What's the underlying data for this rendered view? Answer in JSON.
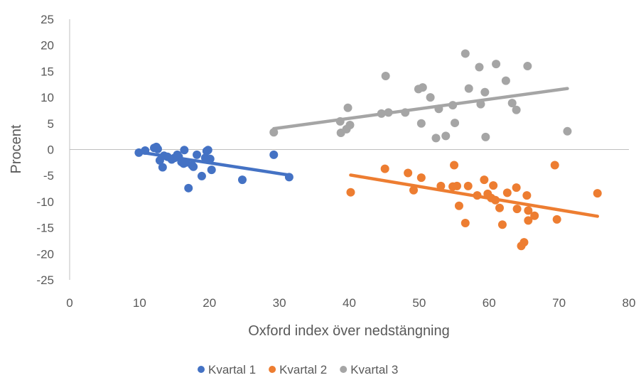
{
  "chart_data": {
    "type": "scatter",
    "xlabel": "Oxford index över nedstängning",
    "ylabel": "Procent",
    "xlim": [
      0,
      80
    ],
    "ylim": [
      -25,
      25
    ],
    "x_ticks": [
      "0",
      "10",
      "20",
      "30",
      "40",
      "50",
      "60",
      "70",
      "80"
    ],
    "y_ticks": [
      "25",
      "20",
      "15",
      "10",
      "5",
      "0",
      "-5",
      "-10",
      "-15",
      "-20",
      "-25"
    ],
    "legend_position": "bottom",
    "grid": false,
    "series": [
      {
        "name": "Kvartal 1",
        "color": "#4472C4",
        "points": [
          [
            9.9,
            -0.6
          ],
          [
            10.8,
            -0.2
          ],
          [
            12.1,
            0.3
          ],
          [
            12.4,
            0.5
          ],
          [
            12.6,
            0.1
          ],
          [
            12.9,
            -2.1
          ],
          [
            13.3,
            -3.4
          ],
          [
            13.5,
            -1.2
          ],
          [
            14.0,
            -1.4
          ],
          [
            14.6,
            -1.9
          ],
          [
            15.0,
            -1.6
          ],
          [
            15.4,
            -1.0
          ],
          [
            15.6,
            -1.4
          ],
          [
            16.0,
            -2.4
          ],
          [
            16.3,
            -2.7
          ],
          [
            16.4,
            -0.1
          ],
          [
            16.6,
            -2.5
          ],
          [
            17.0,
            -7.4
          ],
          [
            17.5,
            -3.0
          ],
          [
            17.7,
            -3.3
          ],
          [
            18.2,
            -1.0
          ],
          [
            18.9,
            -5.1
          ],
          [
            19.4,
            -1.6
          ],
          [
            19.6,
            -0.3
          ],
          [
            19.8,
            -0.1
          ],
          [
            20.1,
            -1.8
          ],
          [
            20.3,
            -3.9
          ],
          [
            24.7,
            -5.8
          ],
          [
            29.2,
            -1.0
          ],
          [
            31.4,
            -5.3
          ]
        ],
        "trend": [
          [
            10,
            -0.5
          ],
          [
            31.4,
            -4.9
          ]
        ]
      },
      {
        "name": "Kvartal 2",
        "color": "#ED7D31",
        "points": [
          [
            40.2,
            -8.2
          ],
          [
            45.1,
            -3.7
          ],
          [
            48.4,
            -4.5
          ],
          [
            49.2,
            -7.8
          ],
          [
            50.3,
            -5.4
          ],
          [
            53.1,
            -7.0
          ],
          [
            54.8,
            -7.1
          ],
          [
            55.0,
            -3.0
          ],
          [
            55.4,
            -7.0
          ],
          [
            55.7,
            -10.8
          ],
          [
            56.6,
            -14.1
          ],
          [
            57.0,
            -7.0
          ],
          [
            58.3,
            -8.8
          ],
          [
            59.3,
            -5.8
          ],
          [
            59.8,
            -8.5
          ],
          [
            60.3,
            -9.3
          ],
          [
            60.6,
            -6.9
          ],
          [
            60.9,
            -9.7
          ],
          [
            61.5,
            -11.2
          ],
          [
            61.9,
            -14.4
          ],
          [
            62.6,
            -8.3
          ],
          [
            63.9,
            -7.3
          ],
          [
            64.0,
            -11.4
          ],
          [
            64.6,
            -18.5
          ],
          [
            65.0,
            -17.8
          ],
          [
            65.4,
            -8.8
          ],
          [
            65.6,
            -11.7
          ],
          [
            65.6,
            -13.6
          ],
          [
            66.5,
            -12.7
          ],
          [
            69.4,
            -3.0
          ],
          [
            69.7,
            -13.4
          ],
          [
            75.5,
            -8.4
          ]
        ],
        "trend": [
          [
            40.2,
            -4.9
          ],
          [
            75.5,
            -12.8
          ]
        ]
      },
      {
        "name": "Kvartal 3",
        "color": "#A5A5A5",
        "points": [
          [
            29.2,
            3.3
          ],
          [
            38.7,
            5.4
          ],
          [
            38.8,
            3.2
          ],
          [
            39.6,
            3.9
          ],
          [
            39.8,
            8.0
          ],
          [
            40.1,
            4.7
          ],
          [
            44.6,
            6.9
          ],
          [
            45.2,
            14.1
          ],
          [
            45.6,
            7.1
          ],
          [
            48.0,
            7.1
          ],
          [
            49.9,
            11.6
          ],
          [
            50.3,
            5.0
          ],
          [
            50.5,
            11.9
          ],
          [
            51.6,
            10.0
          ],
          [
            52.4,
            2.2
          ],
          [
            52.8,
            7.8
          ],
          [
            53.8,
            2.6
          ],
          [
            54.8,
            8.5
          ],
          [
            55.1,
            5.1
          ],
          [
            56.6,
            18.4
          ],
          [
            57.1,
            11.7
          ],
          [
            58.6,
            15.8
          ],
          [
            58.8,
            8.7
          ],
          [
            59.4,
            11.0
          ],
          [
            59.5,
            2.4
          ],
          [
            61.0,
            16.4
          ],
          [
            62.4,
            13.2
          ],
          [
            63.3,
            8.9
          ],
          [
            63.9,
            7.6
          ],
          [
            65.5,
            16.0
          ],
          [
            71.2,
            3.5
          ]
        ],
        "trend": [
          [
            29.2,
            4.0
          ],
          [
            71.2,
            11.7
          ]
        ]
      }
    ]
  }
}
